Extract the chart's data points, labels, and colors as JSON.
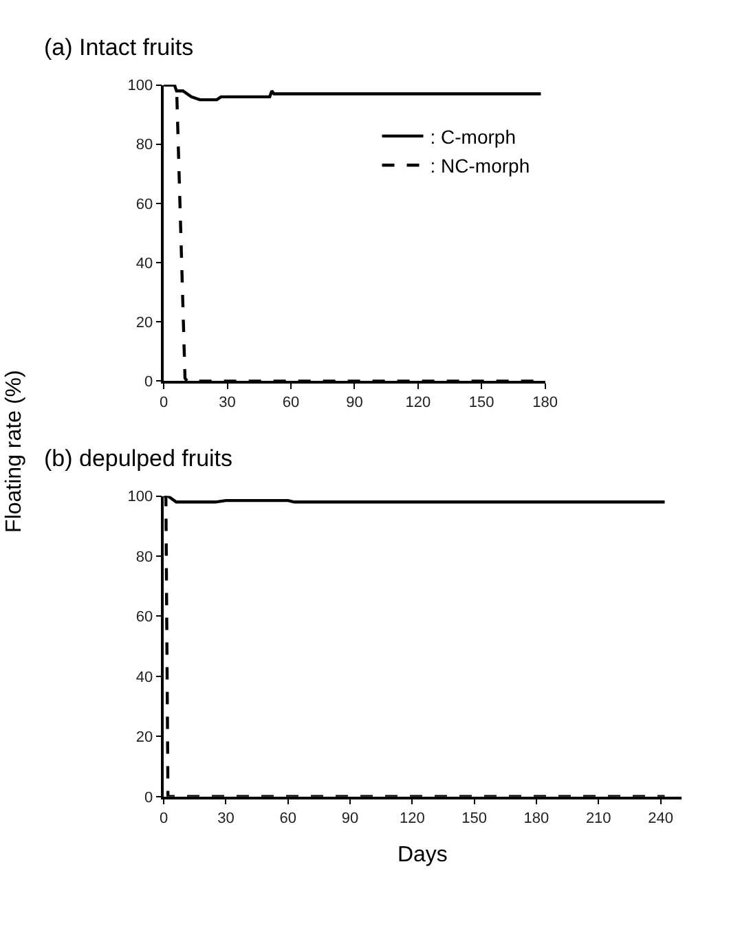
{
  "chart_data": [
    {
      "type": "line",
      "title": "(a) Intact fruits",
      "ylabel": "Floating rate (%)",
      "xlim": [
        0,
        180
      ],
      "xticks": [
        0,
        30,
        60,
        90,
        120,
        150,
        180
      ],
      "ylim": [
        0,
        100
      ],
      "yticks": [
        0,
        20,
        40,
        60,
        80,
        100
      ],
      "legend": "top right",
      "marker": "none",
      "series": [
        {
          "name": ": C-morph",
          "color": "#000000",
          "line_style": "solid",
          "x": [
            0,
            5,
            6,
            9,
            13,
            17,
            25,
            27,
            50,
            51,
            52,
            178
          ],
          "values": [
            100,
            100,
            98,
            98,
            96,
            95,
            95,
            96,
            96,
            98,
            97,
            97
          ]
        },
        {
          "name": ": NC-morph",
          "color": "#000000",
          "line_style": "dashed",
          "x": [
            0,
            6,
            10,
            11,
            178
          ],
          "values": [
            100,
            100,
            1,
            0,
            0
          ]
        }
      ]
    },
    {
      "type": "line",
      "title": "(b) depulped fruits",
      "xlabel": "Days",
      "xlim": [
        0,
        250
      ],
      "xticks": [
        0,
        30,
        60,
        90,
        120,
        150,
        180,
        210,
        240
      ],
      "ylim": [
        0,
        100
      ],
      "yticks": [
        0,
        20,
        40,
        60,
        80,
        100
      ],
      "legend": false,
      "marker": "none",
      "series": [
        {
          "color": "#000000",
          "line_style": "solid",
          "x": [
            0,
            2,
            6,
            25,
            30,
            60,
            63,
            242
          ],
          "values": [
            100,
            100,
            98,
            98,
            98.5,
            98.5,
            98,
            98
          ]
        },
        {
          "color": "#000000",
          "line_style": "dashed",
          "x": [
            0,
            1,
            2,
            242
          ],
          "values": [
            100,
            100,
            0,
            0
          ]
        }
      ]
    }
  ]
}
